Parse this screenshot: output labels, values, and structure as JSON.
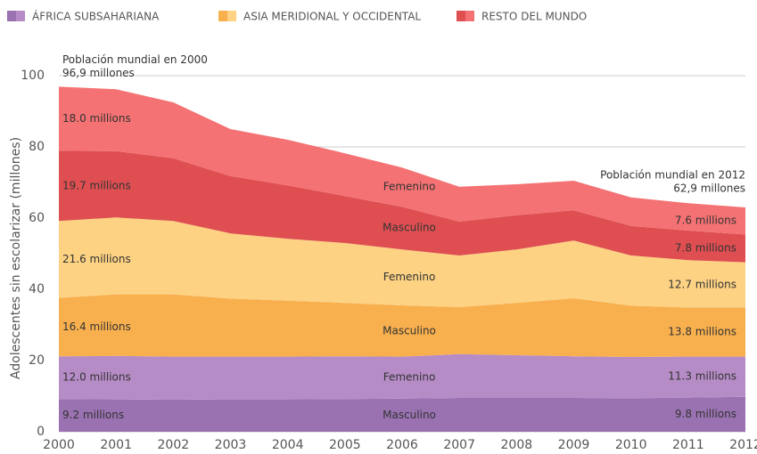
{
  "chart_data": {
    "type": "stacked_area",
    "y_label": "Adolescentes  sin escolarizar (millones)",
    "x": [
      2000,
      2001,
      2002,
      2003,
      2004,
      2005,
      2006,
      2007,
      2008,
      2009,
      2010,
      2011,
      2012
    ],
    "xlim": [
      2000,
      2012
    ],
    "xticks": [
      2000,
      2001,
      2002,
      2003,
      2004,
      2005,
      2006,
      2007,
      2008,
      2009,
      2010,
      2011,
      2012
    ],
    "ylim": [
      0,
      100
    ],
    "yticks": [
      0,
      20,
      40,
      60,
      80,
      100
    ],
    "grid": true,
    "groups": [
      {
        "name": "ÁFRICA SUBSAHARIANA",
        "colors": [
          "#9a72b2",
          "#b68cc6"
        ]
      },
      {
        "name": "ASIA MERIDIONAL Y OCCIDENTAL",
        "colors": [
          "#f8b04e",
          "#fdd283"
        ]
      },
      {
        "name": "RESTO DEL MUNDO",
        "colors": [
          "#df4f52",
          "#f47273"
        ]
      }
    ],
    "series": [
      {
        "name": "Masculino",
        "group": 0,
        "color": "#9a72b2",
        "values": [
          9.2,
          9.1,
          9.0,
          9.1,
          9.1,
          9.2,
          9.3,
          9.5,
          9.5,
          9.5,
          9.4,
          9.6,
          9.8
        ],
        "value_labels": [
          "9.2 millions",
          null,
          null,
          null,
          null,
          null,
          null,
          null,
          null,
          null,
          null,
          null,
          "9.8 millions"
        ]
      },
      {
        "name": "Femenino",
        "group": 0,
        "color": "#b68cc6",
        "values": [
          12.0,
          12.2,
          12.1,
          12.0,
          12.0,
          12.0,
          11.8,
          12.3,
          12.0,
          11.7,
          11.6,
          11.5,
          11.3
        ],
        "value_labels": [
          "12.0 millions",
          null,
          null,
          null,
          null,
          null,
          null,
          null,
          null,
          null,
          null,
          null,
          "11.3 millions"
        ]
      },
      {
        "name": "Masculino",
        "group": 1,
        "color": "#f8b04e",
        "values": [
          16.4,
          17.3,
          17.5,
          16.3,
          15.7,
          15.0,
          14.4,
          13.2,
          14.7,
          16.3,
          14.4,
          13.8,
          13.8
        ],
        "value_labels": [
          "16.4 millions",
          null,
          null,
          null,
          null,
          null,
          null,
          null,
          null,
          null,
          null,
          null,
          "13.8 millions"
        ]
      },
      {
        "name": "Femenino",
        "group": 1,
        "color": "#fdd283",
        "values": [
          21.6,
          21.6,
          20.6,
          18.3,
          17.4,
          16.8,
          15.7,
          14.5,
          15.0,
          16.2,
          14.1,
          13.3,
          12.7
        ],
        "value_labels": [
          "21.6 millions",
          null,
          null,
          null,
          null,
          null,
          null,
          null,
          null,
          null,
          null,
          null,
          "12.7 millions"
        ]
      },
      {
        "name": "Masculino",
        "group": 2,
        "color": "#df4f52",
        "values": [
          19.7,
          18.6,
          17.6,
          16.1,
          15.0,
          13.2,
          12.0,
          9.5,
          9.6,
          8.5,
          8.3,
          8.3,
          7.8
        ],
        "value_labels": [
          "19.7 millions",
          null,
          null,
          null,
          null,
          null,
          null,
          null,
          null,
          null,
          null,
          null,
          "7.8 millions"
        ]
      },
      {
        "name": "Femenino",
        "group": 2,
        "color": "#f47273",
        "values": [
          18.0,
          17.4,
          15.7,
          13.2,
          12.8,
          12.0,
          11.0,
          9.8,
          8.7,
          8.3,
          8.0,
          7.7,
          7.6
        ],
        "value_labels": [
          "18.0 millions",
          null,
          null,
          null,
          null,
          null,
          null,
          null,
          null,
          null,
          null,
          null,
          "7.6 millions"
        ]
      }
    ],
    "name_label_x": 2006,
    "annotations": [
      {
        "x": 2000,
        "lines": [
          "Población mundial en 2000",
          "96,9 millones"
        ]
      },
      {
        "x": 2012,
        "lines": [
          "Población mundial en 2012",
          "62,9 millones"
        ]
      }
    ]
  }
}
